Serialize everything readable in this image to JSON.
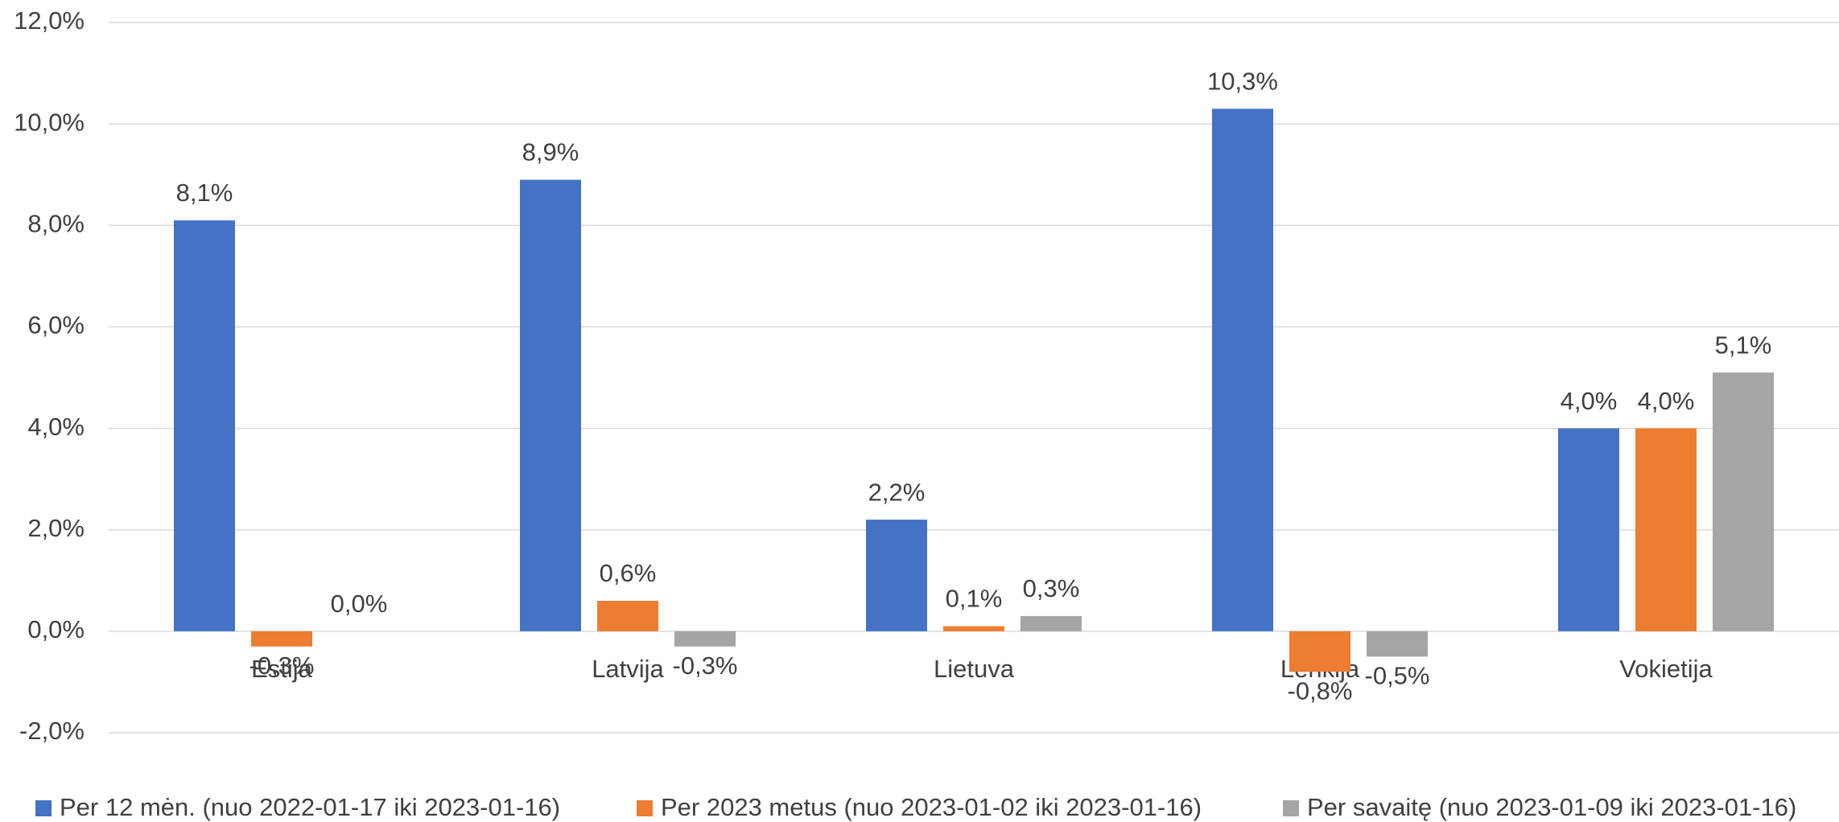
{
  "chart_data": {
    "type": "bar",
    "categories": [
      "Estija",
      "Latvija",
      "Lietuva",
      "Lenkija",
      "Vokietija"
    ],
    "series": [
      {
        "name": "Per 12 mėn. (nuo 2022-01-17 iki 2023-01-16)",
        "color": "#4472c4",
        "values": [
          8.1,
          8.9,
          2.2,
          10.3,
          4.0
        ],
        "value_labels": [
          "8,1%",
          "8,9%",
          "2,2%",
          "10,3%",
          "4,0%"
        ]
      },
      {
        "name": "Per 2023 metus (nuo 2023-01-02 iki 2023-01-16)",
        "color": "#ed7d31",
        "values": [
          -0.3,
          0.6,
          0.1,
          -0.8,
          4.0
        ],
        "value_labels": [
          "-0,3%",
          "0,6%",
          "0,1%",
          "-0,8%",
          "4,0%"
        ]
      },
      {
        "name": "Per savaitę (nuo 2023-01-09 iki 2023-01-16)",
        "color": "#a5a5a5",
        "values": [
          0.0,
          -0.3,
          0.3,
          -0.5,
          5.1
        ],
        "value_labels": [
          "0,0%",
          "-0,3%",
          "0,3%",
          "-0,5%",
          "5,1%"
        ]
      }
    ],
    "ylim": [
      -2,
      12
    ],
    "yticks": [
      {
        "value": -2,
        "label": "-2,0%"
      },
      {
        "value": 0,
        "label": "0,0%"
      },
      {
        "value": 2,
        "label": "2,0%"
      },
      {
        "value": 4,
        "label": "4,0%"
      },
      {
        "value": 6,
        "label": "6,0%"
      },
      {
        "value": 8,
        "label": "8,0%"
      },
      {
        "value": 10,
        "label": "10,0%"
      },
      {
        "value": 12,
        "label": "12,0%"
      }
    ],
    "grid": true,
    "legend": "bottom"
  }
}
